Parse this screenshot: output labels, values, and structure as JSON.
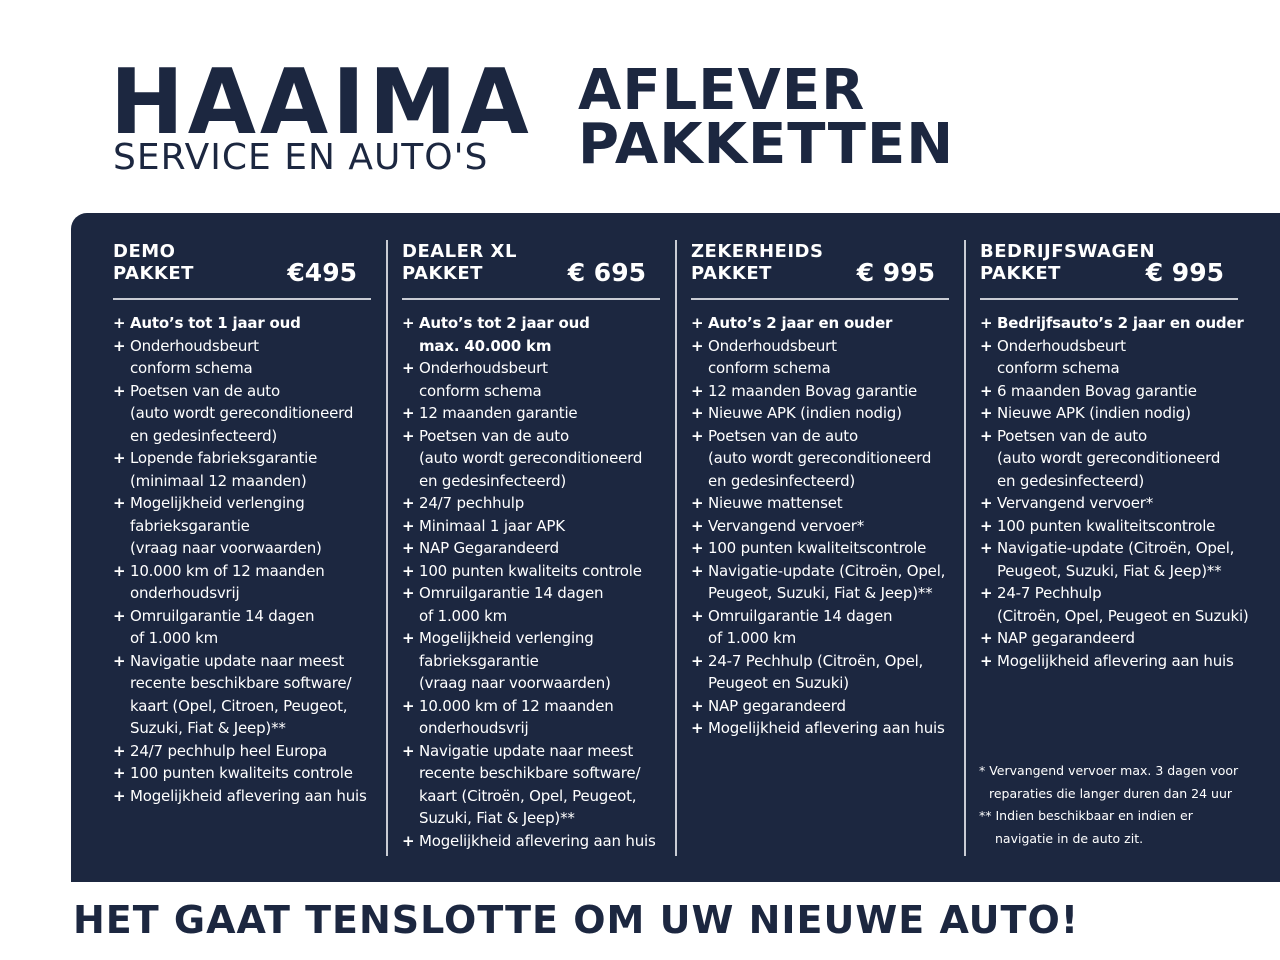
{
  "header": {
    "logo_name": "HAAIMA",
    "logo_tagline": "SERVICE EN AUTO'S",
    "title_line1": "AFLEVER",
    "title_line2": "PAKKETTEN"
  },
  "colors": {
    "navy": "#1c2740",
    "white": "#ffffff"
  },
  "packages": [
    {
      "name1": "DEMO",
      "name2": "PAKKET",
      "price": "€495",
      "items": [
        {
          "bold": true,
          "lines": [
            "Auto’s tot 1 jaar oud"
          ]
        },
        {
          "bold": false,
          "lines": [
            "Onderhoudsbeurt",
            "conform schema"
          ]
        },
        {
          "bold": false,
          "lines": [
            "Poetsen van de auto",
            "(auto wordt gereconditioneerd",
            "en gedesinfecteerd)"
          ]
        },
        {
          "bold": false,
          "lines": [
            "Lopende fabrieksgarantie",
            "(minimaal 12 maanden)"
          ]
        },
        {
          "bold": false,
          "lines": [
            "Mogelijkheid verlenging",
            "fabrieksgarantie",
            "(vraag naar voorwaarden)"
          ]
        },
        {
          "bold": false,
          "lines": [
            "10.000 km of 12 maanden",
            "onderhoudsvrij"
          ]
        },
        {
          "bold": false,
          "lines": [
            "Omruilgarantie 14 dagen",
            "of 1.000 km"
          ]
        },
        {
          "bold": false,
          "lines": [
            "Navigatie update naar meest",
            "recente beschikbare software/",
            "kaart (Opel, Citroen,  Peugeot,",
            "Suzuki, Fiat & Jeep)**"
          ]
        },
        {
          "bold": false,
          "lines": [
            "24/7 pechhulp heel Europa"
          ]
        },
        {
          "bold": false,
          "lines": [
            "100 punten kwaliteits controle"
          ]
        },
        {
          "bold": false,
          "lines": [
            "Mogelijkheid aflevering aan huis"
          ]
        }
      ]
    },
    {
      "name1": "DEALER XL",
      "name2": "PAKKET",
      "price": "€ 695",
      "items": [
        {
          "bold": true,
          "lines": [
            "Auto’s tot 2 jaar oud",
            "max. 40.000 km"
          ]
        },
        {
          "bold": false,
          "lines": [
            "Onderhoudsbeurt",
            "conform schema"
          ]
        },
        {
          "bold": false,
          "lines": [
            "12 maanden garantie"
          ]
        },
        {
          "bold": false,
          "lines": [
            "Poetsen van de auto",
            "(auto wordt gereconditioneerd",
            "en gedesinfecteerd)"
          ]
        },
        {
          "bold": false,
          "lines": [
            "24/7 pechhulp"
          ]
        },
        {
          "bold": false,
          "lines": [
            "Minimaal 1 jaar APK"
          ]
        },
        {
          "bold": false,
          "lines": [
            "NAP Gegarandeerd"
          ]
        },
        {
          "bold": false,
          "lines": [
            "100 punten kwaliteits controle"
          ]
        },
        {
          "bold": false,
          "lines": [
            "Omruilgarantie 14 dagen",
            "of 1.000 km"
          ]
        },
        {
          "bold": false,
          "lines": [
            "Mogelijkheid verlenging",
            "fabrieksgarantie",
            "(vraag naar voorwaarden)"
          ]
        },
        {
          "bold": false,
          "lines": [
            "10.000 km of 12 maanden",
            "onderhoudsvrij"
          ]
        },
        {
          "bold": false,
          "lines": [
            "Navigatie update naar meest",
            "recente beschikbare software/",
            "kaart (Citroën, Opel, Peugeot,",
            "Suzuki, Fiat & Jeep)**"
          ]
        },
        {
          "bold": false,
          "lines": [
            "Mogelijkheid aflevering aan huis"
          ]
        }
      ]
    },
    {
      "name1": "ZEKERHEIDS",
      "name2": "PAKKET",
      "price": "€ 995",
      "items": [
        {
          "bold": true,
          "lines": [
            "Auto’s 2 jaar en ouder"
          ]
        },
        {
          "bold": false,
          "lines": [
            "Onderhoudsbeurt",
            "conform schema"
          ]
        },
        {
          "bold": false,
          "lines": [
            "12 maanden Bovag garantie"
          ]
        },
        {
          "bold": false,
          "lines": [
            "Nieuwe APK (indien nodig)"
          ]
        },
        {
          "bold": false,
          "lines": [
            "Poetsen van de auto",
            "(auto wordt gereconditioneerd",
            "en gedesinfecteerd)"
          ]
        },
        {
          "bold": false,
          "lines": [
            "Nieuwe mattenset"
          ]
        },
        {
          "bold": false,
          "lines": [
            "Vervangend vervoer*"
          ]
        },
        {
          "bold": false,
          "lines": [
            "100 punten kwaliteitscontrole"
          ]
        },
        {
          "bold": false,
          "lines": [
            "Navigatie-update (Citroën, Opel,",
            "Peugeot, Suzuki, Fiat & Jeep)**"
          ]
        },
        {
          "bold": false,
          "lines": [
            "Omruilgarantie 14 dagen",
            "of 1.000 km"
          ]
        },
        {
          "bold": false,
          "lines": [
            "24-7 Pechhulp (Citroën, Opel,",
            "Peugeot en Suzuki)"
          ]
        },
        {
          "bold": false,
          "lines": [
            "NAP gegarandeerd"
          ]
        },
        {
          "bold": false,
          "lines": [
            "Mogelijkheid aflevering aan huis"
          ]
        }
      ]
    },
    {
      "name1": "BEDRIJFSWAGEN",
      "name2": "PAKKET",
      "price": "€ 995",
      "items": [
        {
          "bold": true,
          "lines": [
            "Bedrijfsauto’s 2 jaar en ouder"
          ]
        },
        {
          "bold": false,
          "lines": [
            "Onderhoudsbeurt",
            "conform schema"
          ]
        },
        {
          "bold": false,
          "lines": [
            "6 maanden Bovag garantie"
          ]
        },
        {
          "bold": false,
          "lines": [
            "Nieuwe APK (indien nodig)"
          ]
        },
        {
          "bold": false,
          "lines": [
            "Poetsen van de auto",
            "(auto wordt gereconditioneerd",
            "en gedesinfecteerd)"
          ]
        },
        {
          "bold": false,
          "lines": [
            "Vervangend vervoer*"
          ]
        },
        {
          "bold": false,
          "lines": [
            "100 punten kwaliteitscontrole"
          ]
        },
        {
          "bold": false,
          "lines": [
            "Navigatie-update (Citroën, Opel,",
            "Peugeot, Suzuki, Fiat & Jeep)**"
          ]
        },
        {
          "bold": false,
          "lines": [
            "24-7 Pechhulp",
            "(Citroën, Opel, Peugeot en Suzuki)"
          ]
        },
        {
          "bold": false,
          "lines": [
            "NAP gegarandeerd"
          ]
        },
        {
          "bold": false,
          "lines": [
            "Mogelijkheid aflevering aan huis"
          ]
        }
      ]
    }
  ],
  "footnotes": [
    "* Vervangend vervoer max. 3 dagen voor reparaties die langer duren dan 24 uur",
    "** Indien beschikbaar en indien er navigatie in de auto zit."
  ],
  "footnote_lines": [
    [
      "* Vervangend vervoer max. 3 dagen voor",
      "reparaties die langer duren dan 24 uur"
    ],
    [
      "** Indien beschikbaar en indien er",
      "navigatie in de auto zit."
    ]
  ],
  "footer": {
    "slogan": "HET GAAT TENSLOTTE OM UW NIEUWE AUTO!"
  }
}
